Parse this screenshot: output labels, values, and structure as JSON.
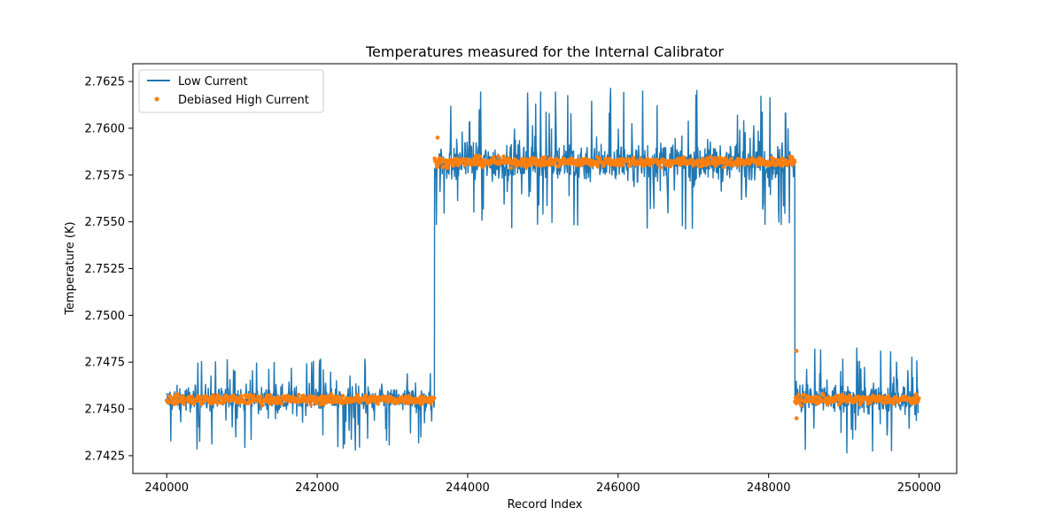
{
  "chart_data": {
    "type": "line",
    "title": "Temperatures measured for the Internal Calibrator",
    "xlabel": "Record Index",
    "ylabel": "Temperature (K)",
    "xlim": [
      239550,
      250500
    ],
    "ylim": [
      2.74155,
      2.76345
    ],
    "xticks": [
      240000,
      242000,
      244000,
      246000,
      248000,
      250000
    ],
    "xtick_labels": [
      "240000",
      "242000",
      "244000",
      "246000",
      "248000",
      "250000"
    ],
    "yticks": [
      2.7425,
      2.745,
      2.7475,
      2.75,
      2.7525,
      2.755,
      2.7575,
      2.76,
      2.7625
    ],
    "ytick_labels": [
      "2.7425",
      "2.7450",
      "2.7475",
      "2.7500",
      "2.7525",
      "2.7550",
      "2.7575",
      "2.7600",
      "2.7625"
    ],
    "grid": false,
    "legend_position": "top-left",
    "series": [
      {
        "name": "Low Current",
        "kind": "line",
        "color": "#1f77b4",
        "segments": [
          {
            "x_start": 240000,
            "x_end": 243560,
            "level": 2.7455,
            "low": 2.7427,
            "high": 2.7477
          },
          {
            "x_start": 243560,
            "x_end": 248350,
            "level": 2.7582,
            "low": 2.7545,
            "high": 2.7622
          },
          {
            "x_start": 248350,
            "x_end": 250000,
            "level": 2.7455,
            "low": 2.7424,
            "high": 2.7483
          }
        ]
      },
      {
        "name": "Debiased High Current",
        "kind": "scatter",
        "color": "#ff7f0e",
        "segments": [
          {
            "x_start": 240000,
            "x_end": 243560,
            "level": 2.7455
          },
          {
            "x_start": 243560,
            "x_end": 248350,
            "level": 2.7582
          },
          {
            "x_start": 248350,
            "x_end": 250000,
            "level": 2.7455
          }
        ],
        "outliers": [
          {
            "x": 243600,
            "y": 2.7595
          },
          {
            "x": 248370,
            "y": 2.7481
          },
          {
            "x": 248370,
            "y": 2.7445
          }
        ]
      }
    ]
  }
}
